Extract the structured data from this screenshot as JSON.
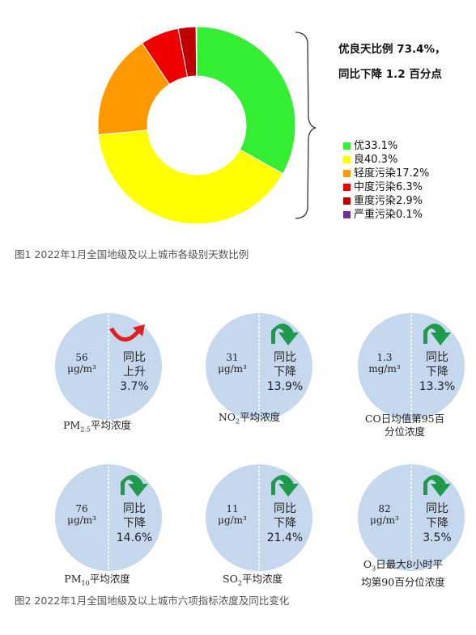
{
  "chart_data": [
    {
      "type": "pie",
      "categories": [
        "优",
        "良",
        "轻度污染",
        "中度污染",
        "重度污染",
        "严重污染"
      ],
      "values": [
        33.1,
        40.3,
        17.2,
        6.3,
        2.9,
        0.1
      ],
      "colors": [
        "#33ee33",
        "#ffff00",
        "#ff9900",
        "#ee0000",
        "#c00000",
        "#7030a0"
      ],
      "legend": [
        "优33.1%",
        "良40.3%",
        "轻度污染17.2%",
        "中度污染6.3%",
        "重度污染2.9%",
        "严重污染0.1%"
      ],
      "legend_position": "right",
      "annotation": [
        "优良天比例 73.4%，",
        "同比下降 1.2 百分点"
      ]
    }
  ],
  "captions": {
    "fig1": "图1   2022年1月全国地级及以上城市各级别天数比例",
    "fig2": "图2   2022年1月全国地级及以上城市六项指标浓度及同比变化"
  },
  "indicators": [
    {
      "name": "PM",
      "sub": "2.5",
      "suffix": "平均浓度",
      "value": "56",
      "unit": "μg/m³",
      "change_label": "同比",
      "direction": "上升",
      "percent": "3.7%",
      "trend": "up"
    },
    {
      "name": "NO",
      "sub": "2",
      "suffix": "平均浓度",
      "value": "31",
      "unit": "μg/m³",
      "change_label": "同比",
      "direction": "下降",
      "percent": "13.9%",
      "trend": "down"
    },
    {
      "line1": "CO日均值第95百",
      "line2": "分位浓度",
      "value": "1.3",
      "unit": "mg/m³",
      "change_label": "同比",
      "direction": "下降",
      "percent": "13.3%",
      "trend": "down"
    },
    {
      "name": "PM",
      "sub": "10",
      "suffix": "平均浓度",
      "value": "76",
      "unit": "μg/m³",
      "change_label": "同比",
      "direction": "下降",
      "percent": "14.6%",
      "trend": "down"
    },
    {
      "name": "SO",
      "sub": "2",
      "suffix": "平均浓度",
      "value": "11",
      "unit": "μg/m³",
      "change_label": "同比",
      "direction": "下降",
      "percent": "21.4%",
      "trend": "down"
    },
    {
      "line1pre": "O",
      "line1sub": "3",
      "line1post": "日最大8小时平",
      "line2": "均第90百分位浓度",
      "value": "82",
      "unit": "μg/m³",
      "change_label": "同比",
      "direction": "下降",
      "percent": "3.5%",
      "trend": "down"
    }
  ],
  "colors": {
    "circle": "#c5d8ee",
    "down_arrow": "#1e9a4a",
    "up_arrow": "#e02020"
  }
}
